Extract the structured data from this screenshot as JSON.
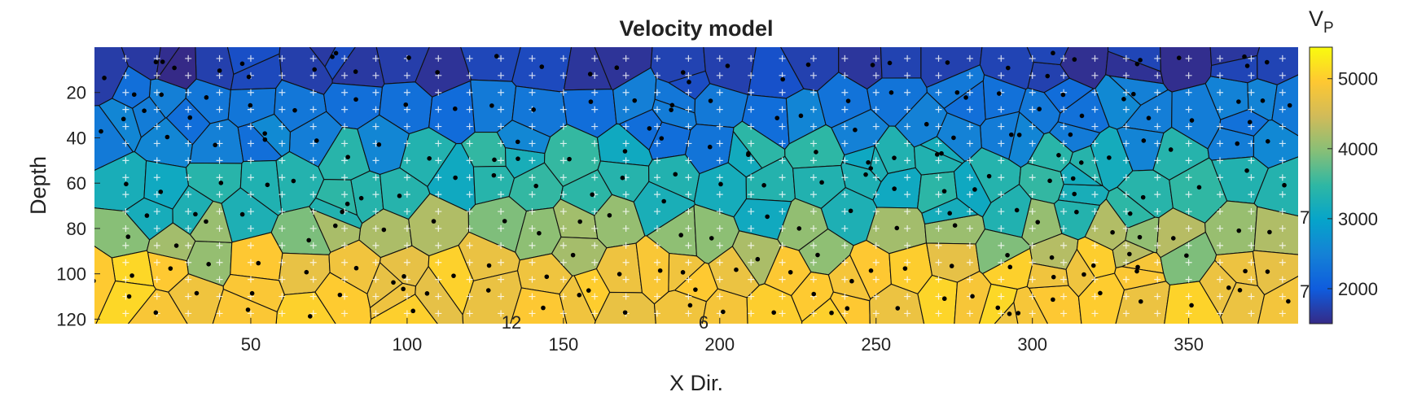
{
  "chart_data": {
    "type": "heatmap",
    "title": "Velocity model",
    "xlabel": "X Dir.",
    "ylabel": "Depth",
    "xlim": [
      0,
      385
    ],
    "ylim": [
      122,
      0
    ],
    "x_ticks": [
      50,
      100,
      150,
      200,
      250,
      300,
      350
    ],
    "y_ticks": [
      20,
      40,
      60,
      80,
      100,
      120
    ],
    "colorbar": {
      "label_main": "V",
      "label_sub": "P",
      "range": [
        1500,
        5450
      ],
      "ticks": [
        2000,
        3000,
        4000,
        5000
      ],
      "colormap": [
        "#352a87",
        "#0f5cdd",
        "#1481d6",
        "#06a4ca",
        "#2eb7a4",
        "#87bf77",
        "#d1bb59",
        "#fec832",
        "#f9fb0e"
      ]
    },
    "layers": [
      {
        "depth_top": 0,
        "depth_bottom": 18,
        "vp": 1700
      },
      {
        "depth_top": 18,
        "depth_bottom": 45,
        "vp": 2400
      },
      {
        "depth_top": 45,
        "depth_bottom": 75,
        "vp": 3300
      },
      {
        "depth_top": 75,
        "depth_bottom": 95,
        "vp": 4100
      },
      {
        "depth_top": 95,
        "depth_bottom": 122,
        "vp": 4900
      }
    ],
    "grid": true,
    "point_labels": [
      "12",
      "6",
      "7",
      "7"
    ]
  }
}
